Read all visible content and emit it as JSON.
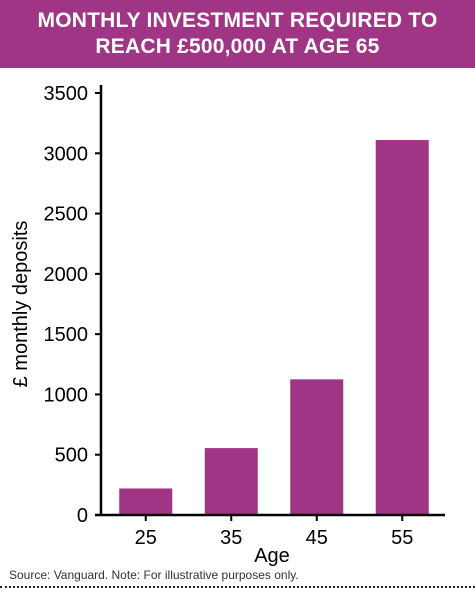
{
  "header": {
    "title": "MONTHLY INVESTMENT REQUIRED TO REACH £500,000 AT AGE 65"
  },
  "footer": {
    "source": "Source: Vanguard. Note: For illustrative purposes only."
  },
  "colors": {
    "banner": "#a03585",
    "bar": "#a03585",
    "axis": "#000000",
    "text": "#000000"
  },
  "chart_data": {
    "type": "bar",
    "title": "MONTHLY INVESTMENT REQUIRED TO REACH £500,000 AT AGE 65",
    "categories": [
      "25",
      "35",
      "45",
      "55"
    ],
    "values": [
      220,
      555,
      1125,
      3110
    ],
    "xlabel": "Age",
    "ylabel": "£ monthly deposits",
    "ylim": [
      0,
      3500
    ],
    "yticks": [
      0,
      500,
      1000,
      1500,
      2000,
      2500,
      3000,
      3500
    ],
    "grid": false,
    "legend": "none"
  }
}
